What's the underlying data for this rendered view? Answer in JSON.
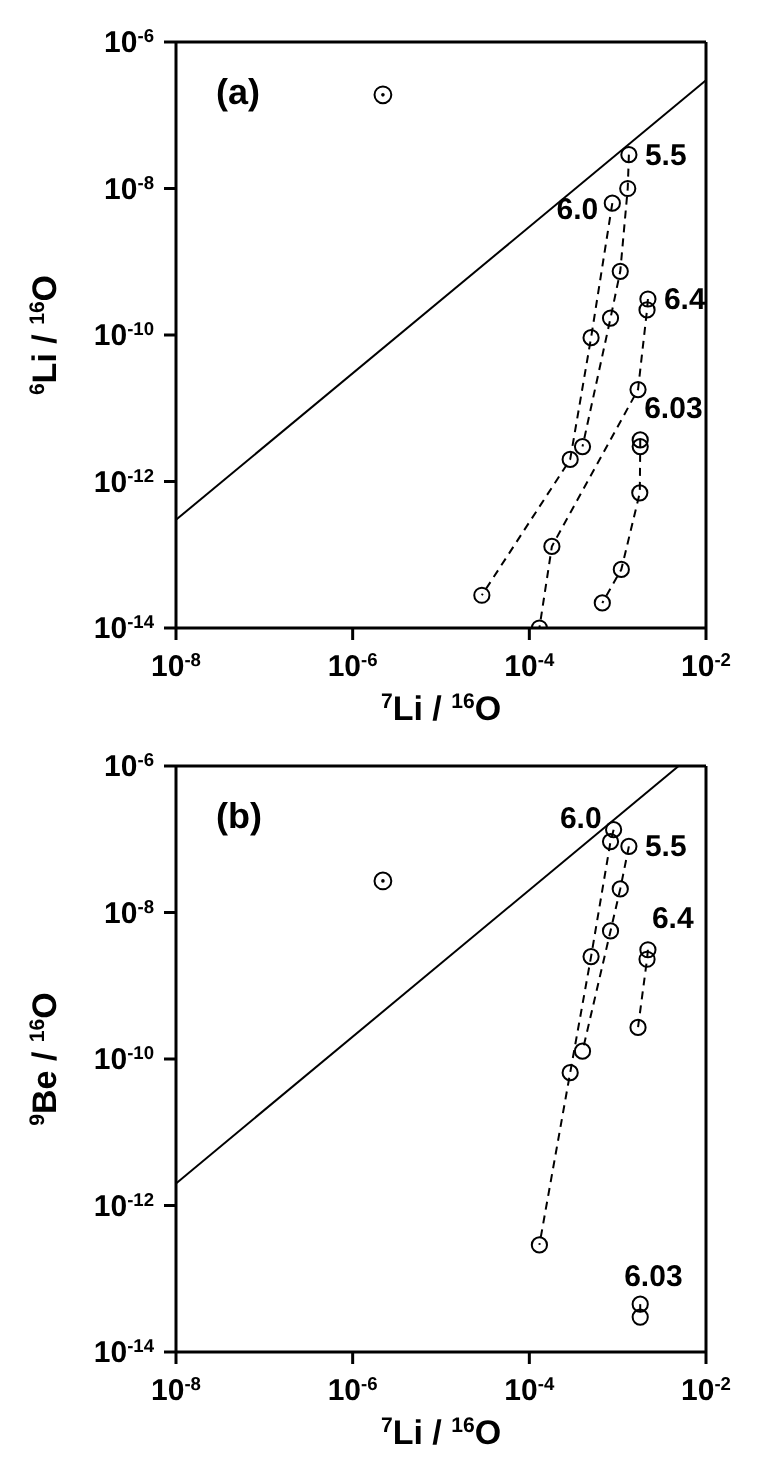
{
  "chart_data": [
    {
      "type": "line",
      "title": "(a)",
      "xlabel": "$^{7}$Li / $^{16}$O",
      "ylabel": "$^{6}$Li / $^{16}$O",
      "log": "xy",
      "xlim": [
        1e-08,
        0.01
      ],
      "ylim": [
        1e-14,
        1e-06
      ],
      "xticks": [
        {
          "value": 1e-08,
          "label": "10$^{-8}$"
        },
        {
          "value": 1e-06,
          "label": "10$^{-6}$"
        },
        {
          "value": 0.0001,
          "label": "10$^{-4}$"
        },
        {
          "value": 0.01,
          "label": "10$^{-2}$"
        }
      ],
      "yticks": [
        {
          "value": 1e-14,
          "label": "10$^{-14}$"
        },
        {
          "value": 1e-12,
          "label": "10$^{-12}$"
        },
        {
          "value": 1e-10,
          "label": "10$^{-10}$"
        },
        {
          "value": 1e-08,
          "label": "10$^{-8}$"
        },
        {
          "value": 1e-06,
          "label": "10$^{-6}$"
        }
      ],
      "series": [
        {
          "x": [
            1e-08,
            0.01
          ],
          "values": [
            3e-13,
            3e-07
          ],
          "color": "#000000",
          "line_style": "solid",
          "marker": "none"
        },
        {
          "name": "5.5",
          "x": [
            0.00134,
            0.0013,
            0.00107,
            0.00083,
            0.0004
          ],
          "values": [
            2.9e-08,
            1e-08,
            7.4e-10,
            1.7e-10,
            3e-12
          ],
          "color": "#000000",
          "line_style": "dashed",
          "marker": "circle"
        },
        {
          "name": "6.0",
          "x": [
            0.00087,
            0.0005,
            0.00029,
            2.9e-05
          ],
          "values": [
            6.3e-09,
            9.2e-11,
            2e-12,
            2.8e-14
          ],
          "color": "#000000",
          "line_style": "dashed",
          "marker": "circle"
        },
        {
          "name": "6.4",
          "x": [
            0.0022,
            0.00215,
            0.0017,
            0.00018,
            0.00013
          ],
          "values": [
            3.1e-10,
            2.2e-10,
            1.8e-11,
            1.3e-13,
            1e-14
          ],
          "color": "#000000",
          "line_style": "dashed",
          "marker": "circle"
        },
        {
          "name": "6.03",
          "x": [
            0.0018,
            0.0018,
            0.00178,
            0.0011,
            0.00067
          ],
          "values": [
            3.7e-12,
            3e-12,
            7e-13,
            6.3e-14,
            2.2e-14
          ],
          "color": "#000000",
          "line_style": "dashed",
          "marker": "circle"
        },
        {
          "type": "scatter",
          "x": [
            2.2e-06
          ],
          "values": [
            1.9e-07
          ],
          "color": "#000000",
          "marker": "circle"
        }
      ]
    },
    {
      "type": "line",
      "title": "(b)",
      "xlabel": "$^{7}$Li / $^{16}$O",
      "ylabel": "$^{9}$Be / $^{16}$O",
      "log": "xy",
      "xlim": [
        1e-08,
        0.01
      ],
      "ylim": [
        1e-14,
        1e-06
      ],
      "xticks": [
        {
          "value": 1e-08,
          "label": "10$^{-8}$"
        },
        {
          "value": 1e-06,
          "label": "10$^{-6}$"
        },
        {
          "value": 0.0001,
          "label": "10$^{-4}$"
        },
        {
          "value": 0.01,
          "label": "10$^{-2}$"
        }
      ],
      "yticks": [
        {
          "value": 1e-14,
          "label": "10$^{-14}$"
        },
        {
          "value": 1e-12,
          "label": "10$^{-12}$"
        },
        {
          "value": 1e-10,
          "label": "10$^{-10}$"
        },
        {
          "value": 1e-08,
          "label": "10$^{-8}$"
        },
        {
          "value": 1e-06,
          "label": "10$^{-6}$"
        }
      ],
      "series": [
        {
          "x": [
            1e-08,
            0.0049
          ],
          "values": [
            2e-12,
            1e-06
          ],
          "color": "#000000",
          "line_style": "solid",
          "marker": "none"
        },
        {
          "name": "6.0",
          "x": [
            0.0009,
            0.00083,
            0.0005,
            0.00029,
            0.00013
          ],
          "values": [
            1.35e-07,
            9.3e-08,
            2.5e-09,
            6.5e-11,
            2.9e-13
          ],
          "color": "#000000",
          "line_style": "dashed",
          "marker": "circle"
        },
        {
          "name": "5.5",
          "x": [
            0.00134,
            0.00107,
            0.00083,
            0.0004
          ],
          "values": [
            8e-08,
            2.1e-08,
            5.6e-09,
            1.28e-10
          ],
          "color": "#000000",
          "line_style": "dashed",
          "marker": "circle"
        },
        {
          "name": "6.4",
          "x": [
            0.0022,
            0.00215,
            0.0017
          ],
          "values": [
            3.1e-09,
            2.3e-09,
            2.7e-10
          ],
          "color": "#000000",
          "line_style": "dashed",
          "marker": "circle"
        },
        {
          "name": "6.03",
          "x": [
            0.0018,
            0.0018
          ],
          "values": [
            4.5e-14,
            3e-14
          ],
          "color": "#000000",
          "line_style": "dashed",
          "marker": "circle"
        },
        {
          "type": "scatter",
          "x": [
            2.2e-06
          ],
          "values": [
            2.7e-08
          ],
          "color": "#000000",
          "marker": "circle"
        }
      ]
    }
  ]
}
